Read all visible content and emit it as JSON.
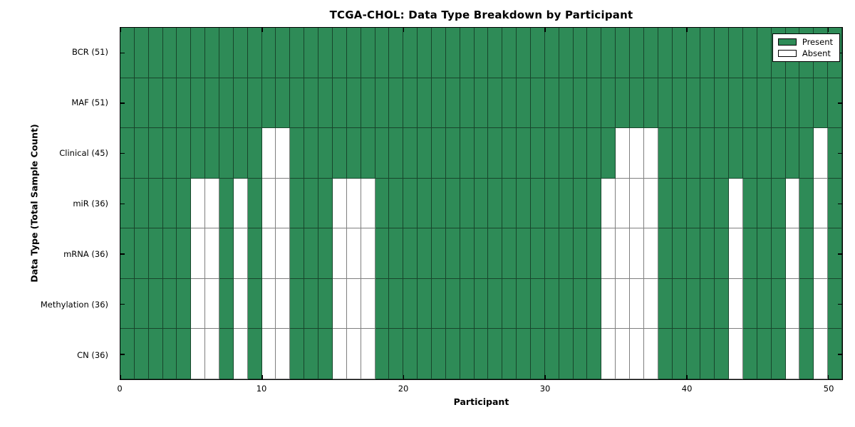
{
  "chart_data": {
    "type": "heatmap",
    "title": "TCGA-CHOL: Data Type Breakdown by Participant",
    "xlabel": "Participant",
    "ylabel": "Data Type (Total Sample Count)",
    "n_participants": 51,
    "x_range": [
      0,
      51
    ],
    "x_ticks": [
      0,
      10,
      20,
      30,
      40,
      50
    ],
    "grid": "cell-edges",
    "tick_direction": "in",
    "rows": [
      {
        "label": "BCR (51)",
        "data_type": "BCR",
        "total_samples": 51,
        "absent_participants": []
      },
      {
        "label": "MAF (51)",
        "data_type": "MAF",
        "total_samples": 51,
        "absent_participants": []
      },
      {
        "label": "Clinical (45)",
        "data_type": "Clinical",
        "total_samples": 45,
        "absent_participants": [
          10,
          11,
          35,
          36,
          37,
          49
        ]
      },
      {
        "label": "miR (36)",
        "data_type": "miR",
        "total_samples": 36,
        "absent_participants": [
          5,
          6,
          8,
          10,
          11,
          15,
          16,
          17,
          34,
          35,
          36,
          37,
          43,
          47,
          49
        ]
      },
      {
        "label": "mRNA (36)",
        "data_type": "mRNA",
        "total_samples": 36,
        "absent_participants": [
          5,
          6,
          8,
          10,
          11,
          15,
          16,
          17,
          34,
          35,
          36,
          37,
          43,
          47,
          49
        ]
      },
      {
        "label": "Methylation (36)",
        "data_type": "Methylation",
        "total_samples": 36,
        "absent_participants": [
          5,
          6,
          8,
          10,
          11,
          15,
          16,
          17,
          34,
          35,
          36,
          37,
          43,
          47,
          49
        ]
      },
      {
        "label": "CN (36)",
        "data_type": "CN",
        "total_samples": 36,
        "absent_participants": [
          5,
          6,
          8,
          10,
          11,
          15,
          16,
          17,
          34,
          35,
          36,
          37,
          43,
          47,
          49
        ]
      }
    ],
    "legend": {
      "position": "upper right",
      "entries": [
        {
          "label": "Present",
          "color": "#2e8b57"
        },
        {
          "label": "Absent",
          "color": "#ffffff"
        }
      ]
    },
    "colors": {
      "present": "#2e8b57",
      "absent": "#ffffff",
      "cell_edge": "rgba(0,0,0,0.50)",
      "spine": "#000000",
      "background": "#ffffff"
    }
  }
}
